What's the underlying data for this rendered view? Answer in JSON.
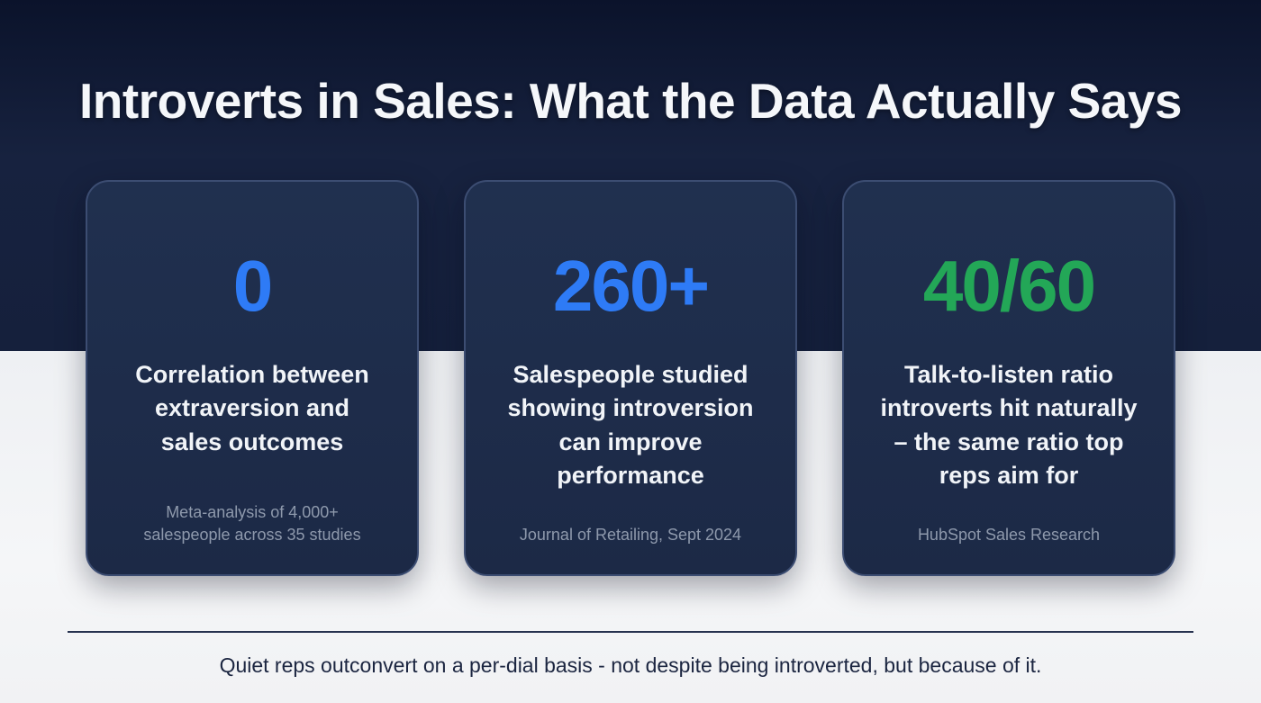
{
  "slide": {
    "title": "Introverts in Sales: What the Data Actually Says",
    "footer": "Quiet reps outconvert on a per-dial basis - not despite being introverted, but because of it."
  },
  "colors": {
    "accent_blue": "#2e7bf6",
    "accent_green": "#23a757",
    "dark_background": "#15203c",
    "light_background": "#f2f3f5",
    "card_background": "#1d2a48",
    "card_border": "#3c4d72"
  },
  "cards": [
    {
      "value": "0",
      "value_color": "#2e7bf6",
      "heading": "Correlation between\nextraversion and\nsales outcomes",
      "source": "Meta-analysis of 4,000+\nsalespeople across 35 studies"
    },
    {
      "value": "260+",
      "value_color": "#2e7bf6",
      "heading": "Salespeople studied\nshowing introversion\ncan improve\nperformance",
      "source": "Journal of Retailing, Sept 2024"
    },
    {
      "value": "40/60",
      "value_color": "#23a757",
      "heading": "Talk-to-listen ratio\nintroverts hit naturally\n– the same ratio top\nreps aim for",
      "source": "HubSpot Sales Research"
    }
  ],
  "chart_data": {
    "type": "table",
    "title": "Introverts in Sales: What the Data Actually Says",
    "stats": [
      {
        "value": "0",
        "label": "Correlation between extraversion and sales outcomes",
        "source": "Meta-analysis of 4,000+ salespeople across 35 studies"
      },
      {
        "value": "260+",
        "label": "Salespeople studied showing introversion can improve performance",
        "source": "Journal of Retailing, Sept 2024"
      },
      {
        "value": "40/60",
        "label": "Talk-to-listen ratio introverts hit naturally – the same ratio top reps aim for",
        "source": "HubSpot Sales Research"
      }
    ],
    "annotation": "Quiet reps outconvert on a per-dial basis - not despite being introverted, but because of it."
  }
}
